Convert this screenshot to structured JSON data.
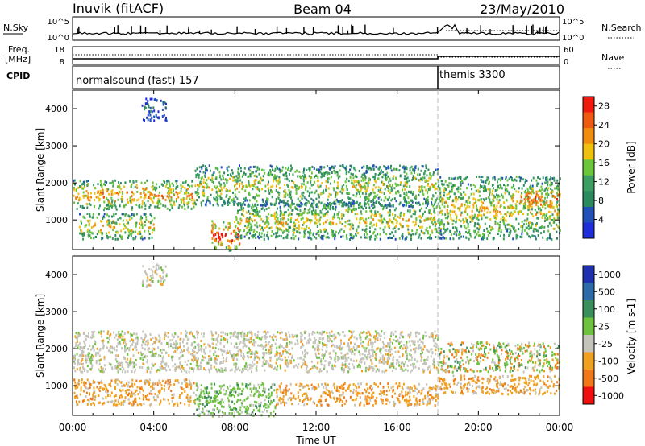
{
  "header": {
    "station": "Inuvik (fitACF)",
    "beam": "Beam 04",
    "date": "23/May/2010"
  },
  "top_panels": {
    "nsky_label": "N.Sky",
    "nsearch_label": "N.Search",
    "freq_label_1": "Freq.",
    "freq_label_2": "[MHz]",
    "nave_label": "Nave",
    "cpid_label": "CPID",
    "nsky_ticks": [
      "10^5",
      "10^0"
    ],
    "nsearch_ticks": [
      "10^5",
      "10^0"
    ],
    "freq_ticks": [
      "18",
      "8"
    ],
    "nave_ticks": [
      "60",
      "0"
    ],
    "cpid_segments": [
      {
        "name": "normalsound (fast) 157",
        "start": 0,
        "end": 18.0
      },
      {
        "name": "themis 3300",
        "start": 18.0,
        "end": 24
      }
    ]
  },
  "colors": {
    "power": [
      "#1f2ed6",
      "#2050b8",
      "#2a8a5e",
      "#3c9e62",
      "#6cc63a",
      "#f0c010",
      "#f08c10",
      "#f05a10",
      "#ee1a10"
    ],
    "velocity": [
      "#1e2fb0",
      "#2d6aa8",
      "#3a8e5c",
      "#6fc23e",
      "#c4c4bc",
      "#f0a020",
      "#f07818",
      "#ee1010"
    ]
  },
  "chart_data": [
    {
      "type": "heatmap",
      "name": "power",
      "xlabel": "Time UT",
      "ylabel": "Slant Range [km]",
      "x_range_hours": [
        0,
        24
      ],
      "ylim": [
        200,
        4500
      ],
      "xticks": [
        "00:00",
        "04:00",
        "08:00",
        "12:00",
        "16:00",
        "20:00",
        "00:00"
      ],
      "yticks": [
        1000,
        2000,
        3000,
        4000
      ],
      "colorbar": {
        "label": "Power [dB]",
        "ticks": [
          4,
          8,
          12,
          16,
          20,
          24,
          28
        ],
        "range": [
          0,
          30
        ]
      },
      "bands": [
        {
          "t0": 0.0,
          "t1": 6.0,
          "r0": 1300,
          "r1": 2100,
          "level": 0.72
        },
        {
          "t0": 0.3,
          "t1": 4.0,
          "r0": 500,
          "r1": 1200,
          "level": 0.66
        },
        {
          "t0": 6.0,
          "t1": 18.0,
          "r0": 1400,
          "r1": 2500,
          "level": 0.55
        },
        {
          "t0": 6.8,
          "t1": 8.2,
          "r0": 200,
          "r1": 1000,
          "level": 0.95
        },
        {
          "t0": 8.0,
          "t1": 18.0,
          "r0": 500,
          "r1": 1500,
          "level": 0.6
        },
        {
          "t0": 18.0,
          "t1": 24.0,
          "r0": 500,
          "r1": 2200,
          "level": 0.62
        },
        {
          "t0": 22.0,
          "t1": 24.0,
          "r0": 1300,
          "r1": 1900,
          "level": 0.9
        },
        {
          "t0": 3.4,
          "t1": 4.6,
          "r0": 3700,
          "r1": 4300,
          "level": 0.2
        }
      ]
    },
    {
      "type": "heatmap",
      "name": "velocity",
      "xlabel": "Time UT",
      "ylabel": "Slant Range [km]",
      "x_range_hours": [
        0,
        24
      ],
      "ylim": [
        200,
        4500
      ],
      "xticks": [
        "00:00",
        "04:00",
        "08:00",
        "12:00",
        "16:00",
        "20:00",
        "00:00"
      ],
      "yticks": [
        1000,
        2000,
        3000,
        4000
      ],
      "colorbar": {
        "label": "Velocity [m s-1]",
        "ticks": [
          "1000",
          "500",
          "100",
          "25",
          "-25",
          "-100",
          "-500",
          "-1000"
        ]
      },
      "bands": [
        {
          "t0": 0.0,
          "t1": 18.0,
          "r0": 1400,
          "r1": 2500,
          "class": "near-zero"
        },
        {
          "t0": 0.0,
          "t1": 6.0,
          "r0": 500,
          "r1": 1200,
          "class": "negative"
        },
        {
          "t0": 6.0,
          "t1": 10.0,
          "r0": 200,
          "r1": 1100,
          "class": "positive"
        },
        {
          "t0": 10.0,
          "t1": 18.0,
          "r0": 500,
          "r1": 1100,
          "class": "negative"
        },
        {
          "t0": 18.0,
          "t1": 24.0,
          "r0": 800,
          "r1": 1300,
          "class": "negative"
        },
        {
          "t0": 18.0,
          "t1": 24.0,
          "r0": 1400,
          "r1": 2200,
          "class": "mixed"
        },
        {
          "t0": 3.4,
          "t1": 4.6,
          "r0": 3700,
          "r1": 4300,
          "class": "near-zero"
        }
      ]
    }
  ]
}
